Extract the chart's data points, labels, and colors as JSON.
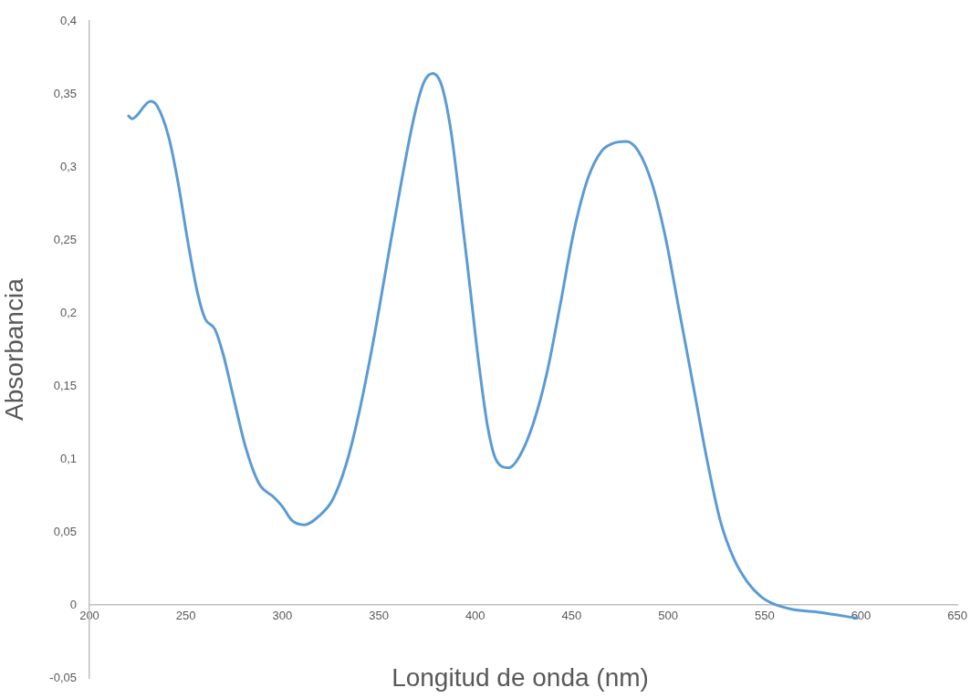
{
  "chart_data": {
    "type": "line",
    "xlabel": "Longitud de onda (nm)",
    "ylabel": "Absorbancia",
    "xlim": [
      200,
      650
    ],
    "xticks": [
      200,
      250,
      300,
      350,
      400,
      450,
      500,
      550,
      600,
      650
    ],
    "ylim": [
      -0.05,
      0.4
    ],
    "yticks": [
      {
        "value": -0.05,
        "label": "-0,05"
      },
      0,
      {
        "value": 0.05,
        "label": "0,05"
      },
      {
        "value": 0.1,
        "label": "0,1"
      },
      {
        "value": 0.15,
        "label": "0,15"
      },
      {
        "value": 0.2,
        "label": "0,2"
      },
      {
        "value": 0.25,
        "label": "0,25"
      },
      {
        "value": 0.3,
        "label": "0,3"
      },
      {
        "value": 0.35,
        "label": "0,35"
      },
      {
        "value": 0.4,
        "label": "0,4"
      }
    ],
    "grid": false,
    "legend": false,
    "marker": "none",
    "series": [
      {
        "color": "#5b9bd5",
        "x": [
          220.3,
          222,
          231.7,
          235,
          241,
          246,
          251,
          256,
          260,
          265,
          269.5,
          274,
          281,
          288,
          295.5,
          300,
          305,
          311.5,
          319,
          326,
          333,
          340,
          347.5,
          354.5,
          361.6,
          368.6,
          373.4,
          378,
          382.8,
          387.5,
          392,
          397,
          402,
          406.6,
          411,
          417.4,
          423,
          430,
          437,
          444,
          451,
          458.5,
          465.6,
          471,
          478.3,
          484.5,
          491.6,
          498.6,
          505.7,
          512.8,
          519.8,
          527,
          534,
          541,
          548,
          555,
          564.7,
          579,
          598
        ],
        "values": [
          0.335,
          0.333,
          0.345,
          0.342,
          0.321,
          0.289,
          0.249,
          0.214,
          0.196,
          0.189,
          0.171,
          0.146,
          0.108,
          0.083,
          0.074,
          0.0675,
          0.058,
          0.055,
          0.061,
          0.072,
          0.096,
          0.133,
          0.183,
          0.236,
          0.289,
          0.336,
          0.358,
          0.364,
          0.355,
          0.324,
          0.277,
          0.221,
          0.164,
          0.121,
          0.099,
          0.094,
          0.102,
          0.124,
          0.158,
          0.205,
          0.255,
          0.2925,
          0.311,
          0.316,
          0.3175,
          0.311,
          0.289,
          0.252,
          0.202,
          0.152,
          0.102,
          0.058,
          0.032,
          0.016,
          0.006,
          0.0006,
          -0.003,
          -0.005,
          -0.009
        ]
      }
    ]
  }
}
